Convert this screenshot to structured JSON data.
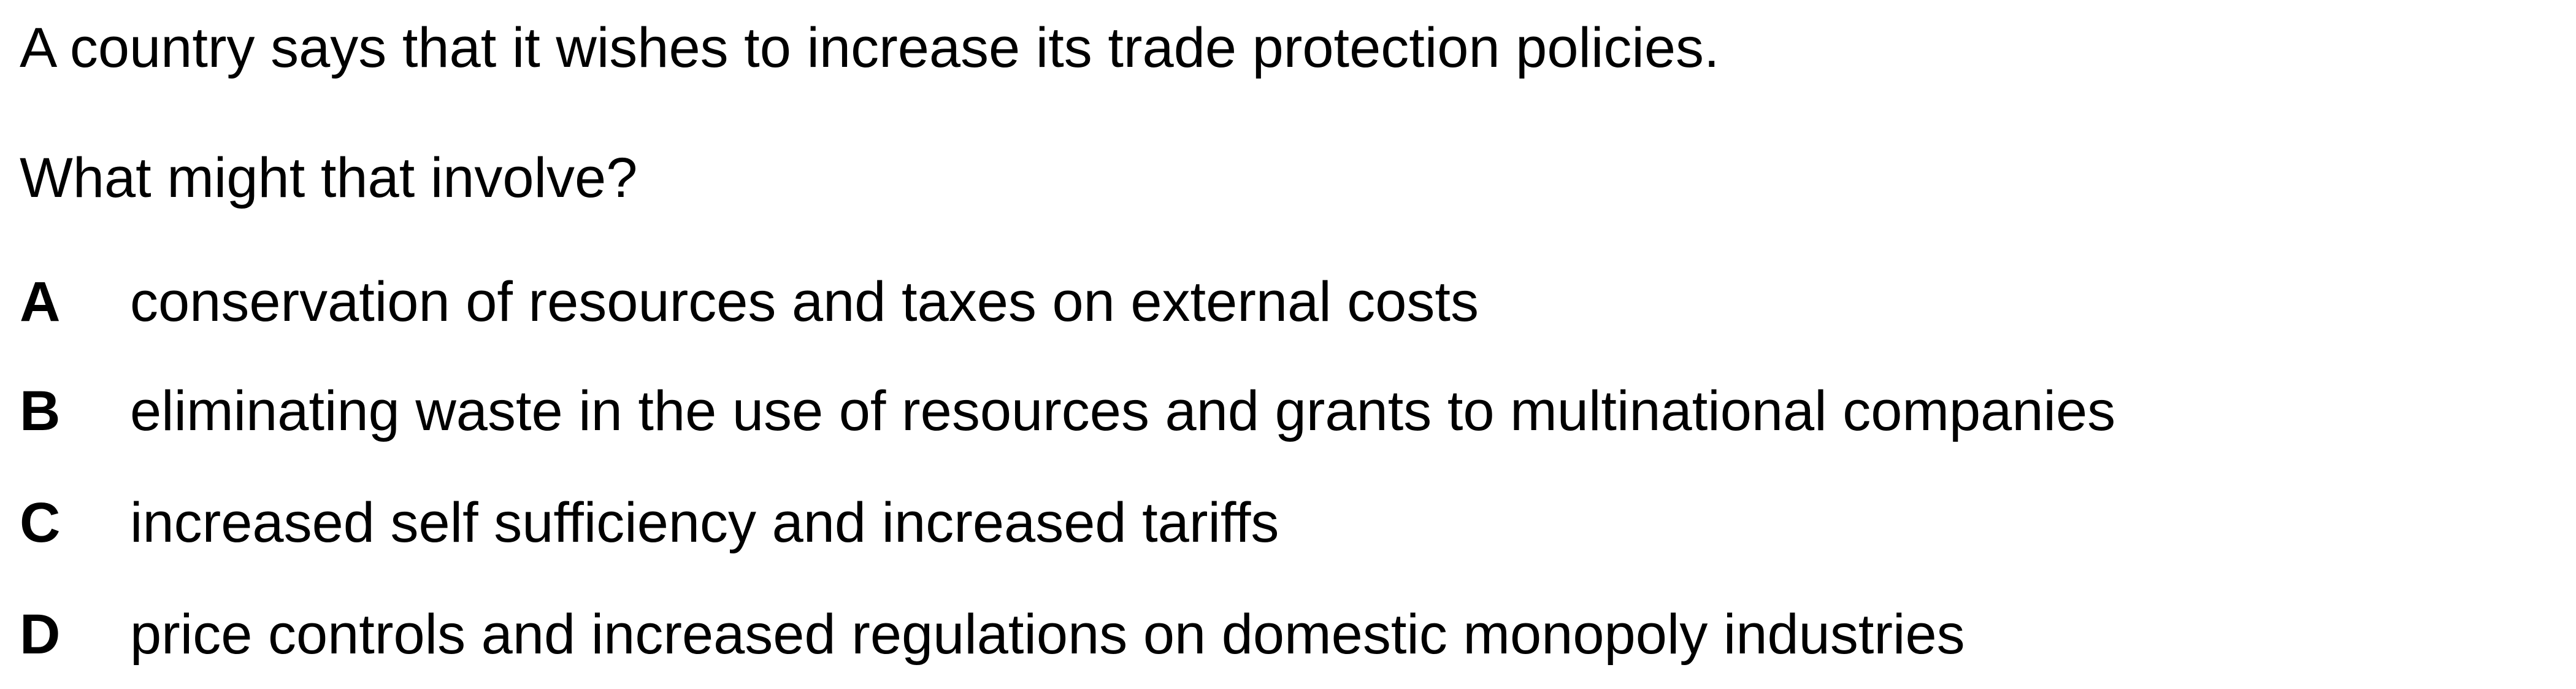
{
  "question": {
    "stem": "A country says that it wishes to increase its trade protection policies.",
    "prompt": "What might that involve?",
    "options": [
      {
        "letter": "A",
        "text": "conservation of resources and taxes on external costs"
      },
      {
        "letter": "B",
        "text": "eliminating waste in the use of resources and grants to multinational companies"
      },
      {
        "letter": "C",
        "text": "increased self sufficiency and increased tariffs"
      },
      {
        "letter": "D",
        "text": "price controls and increased regulations on domestic monopoly industries"
      }
    ]
  }
}
